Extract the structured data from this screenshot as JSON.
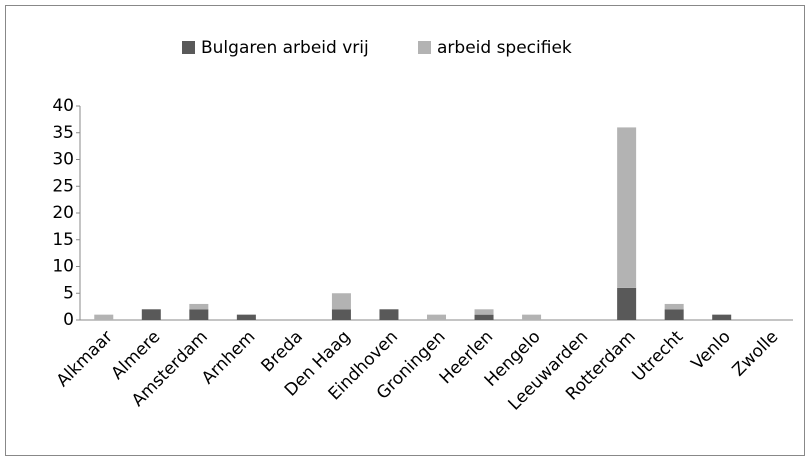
{
  "chart_data": {
    "type": "stacked_bar",
    "categories": [
      "Alkmaar",
      "Almere",
      "Amsterdam",
      "Arnhem",
      "Breda",
      "Den Haag",
      "Eindhoven",
      "Groningen",
      "Heerlen",
      "Hengelo",
      "Leeuwarden",
      "Rotterdam",
      "Utrecht",
      "Venlo",
      "Zwolle"
    ],
    "series": [
      {
        "name": "Bulgaren arbeid vrij",
        "color": "#595959",
        "values": [
          0,
          2,
          2,
          1,
          0,
          2,
          2,
          0,
          1,
          0,
          0,
          6,
          2,
          1,
          0
        ]
      },
      {
        "name": "arbeid specifiek",
        "color": "#b3b3b3",
        "values": [
          1,
          0,
          1,
          0,
          0,
          3,
          0,
          1,
          1,
          1,
          0,
          30,
          1,
          0,
          0
        ]
      }
    ],
    "ylim": [
      0,
      40
    ],
    "yticks": [
      0,
      5,
      10,
      15,
      20,
      25,
      30,
      35,
      40
    ],
    "grid": false,
    "legend": "top"
  }
}
